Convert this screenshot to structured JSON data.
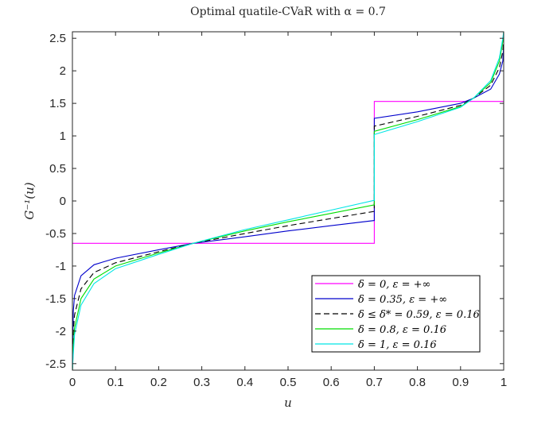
{
  "chart_data": {
    "type": "line",
    "title": "Optimal quatile-CVaR with α = 0.7",
    "xlabel": "u",
    "ylabel": "G⁻¹(u)",
    "xlim": [
      0,
      1
    ],
    "ylim": [
      -2.6,
      2.6
    ],
    "xticks": [
      0,
      0.1,
      0.2,
      0.3,
      0.4,
      0.5,
      0.6,
      0.7,
      0.8,
      0.9,
      1
    ],
    "xtick_labels": [
      "0",
      "0.1",
      "0.2",
      "0.3",
      "0.4",
      "0.5",
      "0.6",
      "0.7",
      "0.8",
      "0.9",
      "1"
    ],
    "yticks": [
      -2.5,
      -2,
      -1.5,
      -1,
      -0.5,
      0,
      0.5,
      1,
      1.5,
      2,
      2.5
    ],
    "ytick_labels": [
      "-2.5",
      "-2",
      "-1.5",
      "-1",
      "-0.5",
      "0",
      "0.5",
      "1",
      "1.5",
      "2",
      "2.5"
    ],
    "grid": false,
    "legend_position": "bottom-right",
    "series": [
      {
        "name": "δ = 0, ε = +∞",
        "color": "#ff00ff",
        "dash": false,
        "x": [
          0,
          0.7,
          0.7,
          1
        ],
        "y": [
          -0.65,
          -0.65,
          1.53,
          1.53
        ]
      },
      {
        "name": "δ = 0.35, ε = +∞",
        "color": "#0000cc",
        "dash": false,
        "x": [
          0,
          0.002,
          0.005,
          0.02,
          0.05,
          0.1,
          0.2,
          0.28,
          0.4,
          0.5,
          0.6,
          0.7,
          0.7,
          0.8,
          0.9,
          0.93,
          0.97,
          0.99,
          0.998,
          1
        ],
        "y": [
          -2.6,
          -1.7,
          -1.45,
          -1.15,
          -0.98,
          -0.88,
          -0.75,
          -0.65,
          -0.55,
          -0.46,
          -0.38,
          -0.3,
          1.27,
          1.37,
          1.5,
          1.58,
          1.72,
          1.95,
          2.15,
          2.4
        ]
      },
      {
        "name": "δ ≤ δ* = 0.59, ε = 0.16",
        "color": "#000000",
        "dash": true,
        "x": [
          0,
          0.002,
          0.005,
          0.02,
          0.05,
          0.1,
          0.2,
          0.28,
          0.4,
          0.5,
          0.6,
          0.7,
          0.7,
          0.8,
          0.9,
          0.93,
          0.97,
          0.99,
          0.998,
          1
        ],
        "y": [
          -2.6,
          -2.0,
          -1.75,
          -1.35,
          -1.1,
          -0.95,
          -0.78,
          -0.65,
          -0.5,
          -0.38,
          -0.27,
          -0.16,
          1.15,
          1.3,
          1.47,
          1.58,
          1.78,
          2.05,
          2.3,
          2.5
        ]
      },
      {
        "name": "δ = 0.8, ε = 0.16",
        "color": "#00dd00",
        "dash": false,
        "x": [
          0,
          0.002,
          0.005,
          0.02,
          0.05,
          0.1,
          0.2,
          0.28,
          0.4,
          0.5,
          0.6,
          0.7,
          0.7,
          0.8,
          0.9,
          0.93,
          0.97,
          0.99,
          0.998,
          1
        ],
        "y": [
          -2.6,
          -2.25,
          -1.95,
          -1.5,
          -1.2,
          -1.0,
          -0.8,
          -0.65,
          -0.46,
          -0.32,
          -0.19,
          -0.06,
          1.07,
          1.25,
          1.45,
          1.58,
          1.82,
          2.15,
          2.45,
          2.6
        ]
      },
      {
        "name": "δ = 1, ε = 0.16",
        "color": "#00e5e5",
        "dash": false,
        "x": [
          0,
          0.002,
          0.005,
          0.02,
          0.05,
          0.1,
          0.2,
          0.28,
          0.4,
          0.5,
          0.6,
          0.7,
          0.7,
          0.8,
          0.9,
          0.93,
          0.97,
          0.99,
          0.998,
          1
        ],
        "y": [
          -2.6,
          -2.35,
          -2.05,
          -1.6,
          -1.27,
          -1.04,
          -0.82,
          -0.65,
          -0.44,
          -0.29,
          -0.14,
          0.01,
          1.02,
          1.22,
          1.44,
          1.58,
          1.85,
          2.2,
          2.5,
          2.6
        ]
      }
    ]
  }
}
